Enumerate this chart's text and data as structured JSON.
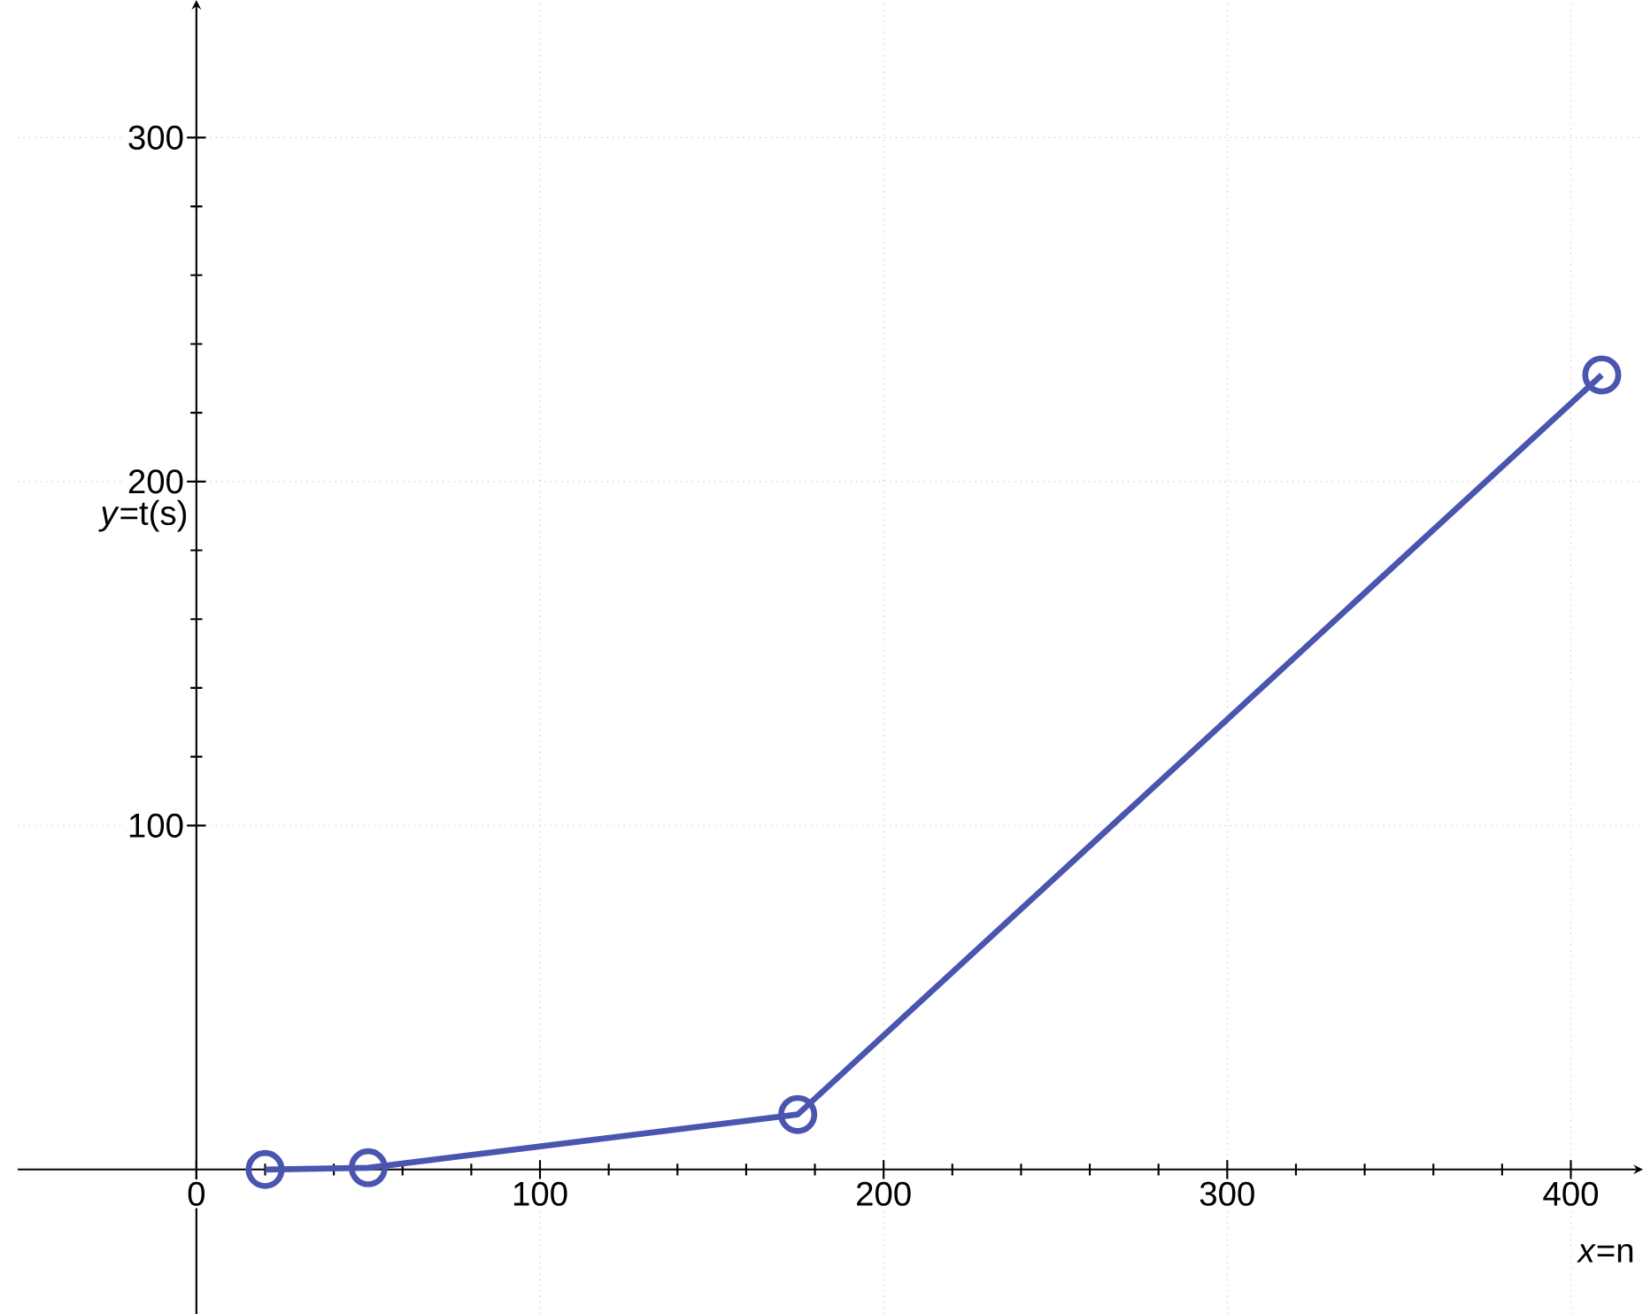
{
  "chart_data": {
    "type": "line",
    "xlabel": "*x*=n",
    "ylabel": "*y*=t(s)",
    "x": [
      20,
      50,
      175,
      409
    ],
    "series": [
      {
        "color": "#4a55b0",
        "values": [
          0,
          0.5,
          16,
          231
        ]
      }
    ],
    "xlim": [
      -52,
      421
    ],
    "ylim": [
      -42,
      340
    ],
    "xticks": [
      0,
      100,
      200,
      300,
      400
    ],
    "yticks": [
      100,
      200,
      300
    ],
    "grid": true,
    "marker": "circle",
    "line_style": "solid"
  }
}
